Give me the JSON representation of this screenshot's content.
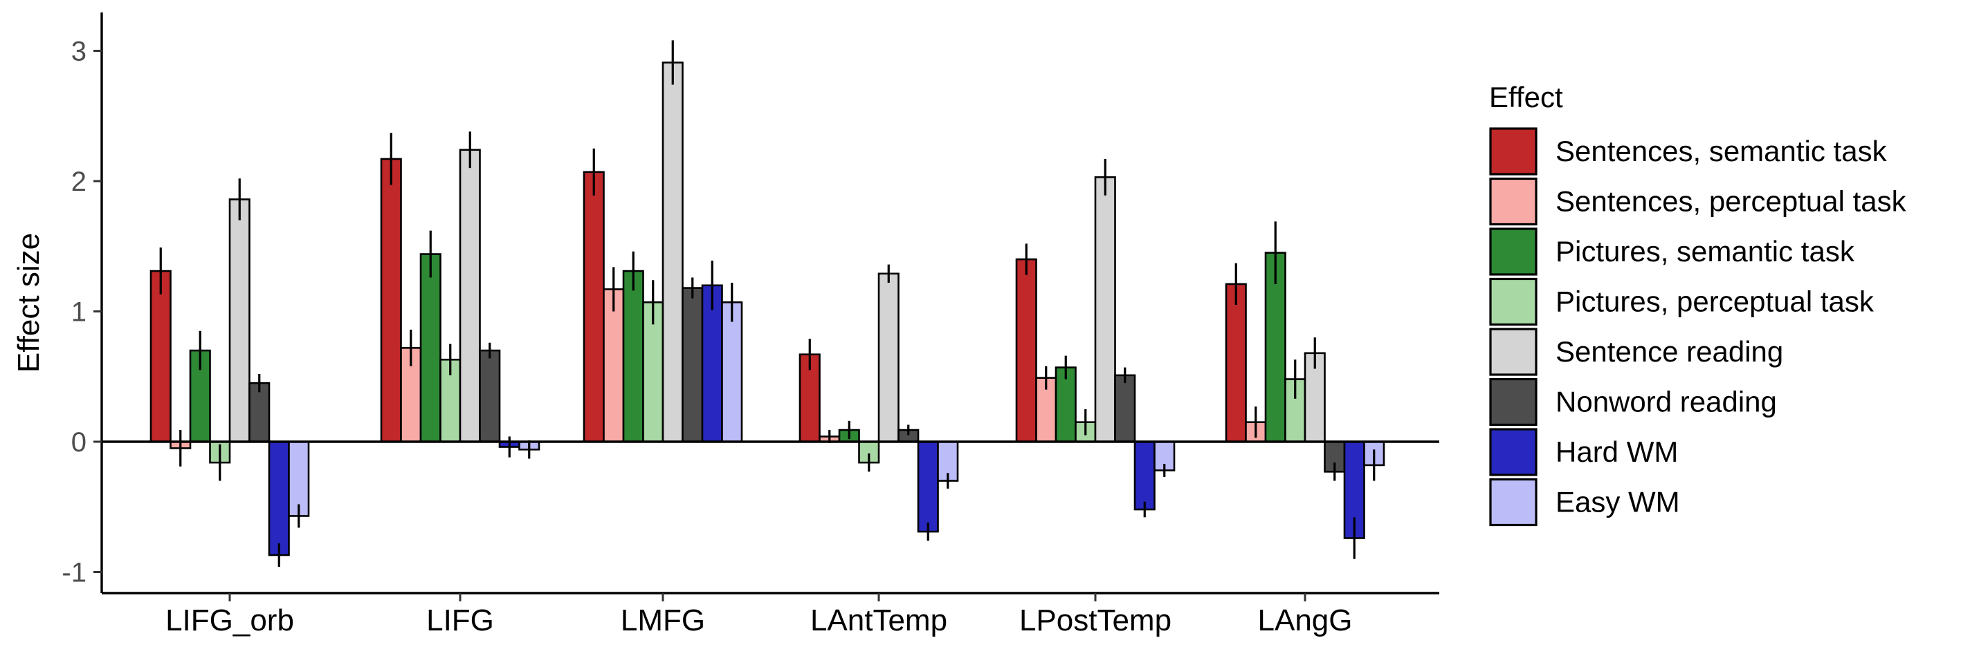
{
  "chart_data": {
    "type": "bar",
    "ylabel": "Effect size",
    "xlabel": "",
    "ylim": [
      -1.15,
      3.3
    ],
    "yticks": [
      -1,
      0,
      1,
      2,
      3
    ],
    "categories": [
      "LIFG_orb",
      "LIFG",
      "LMFG",
      "LAntTemp",
      "LPostTemp",
      "LAngG"
    ],
    "legend": {
      "title": "Effect",
      "position": "right"
    },
    "series": [
      {
        "name": "Sentences, semantic task",
        "color": "#c0282a",
        "values": [
          1.31,
          2.17,
          2.07,
          0.67,
          1.4,
          1.21
        ],
        "errors": [
          0.18,
          0.2,
          0.18,
          0.12,
          0.12,
          0.16
        ]
      },
      {
        "name": "Sentences, perceptual task",
        "color": "#f8aaa6",
        "values": [
          -0.05,
          0.72,
          1.17,
          0.04,
          0.49,
          0.15
        ],
        "errors": [
          0.14,
          0.14,
          0.17,
          0.05,
          0.09,
          0.12
        ]
      },
      {
        "name": "Pictures, semantic task",
        "color": "#2f8a35",
        "values": [
          0.7,
          1.44,
          1.31,
          0.09,
          0.57,
          1.45
        ],
        "errors": [
          0.15,
          0.18,
          0.15,
          0.07,
          0.09,
          0.24
        ]
      },
      {
        "name": "Pictures, perceptual task",
        "color": "#a8d8a4",
        "values": [
          -0.16,
          0.63,
          1.07,
          -0.16,
          0.15,
          0.48
        ],
        "errors": [
          0.14,
          0.12,
          0.17,
          0.07,
          0.1,
          0.15
        ]
      },
      {
        "name": "Sentence reading",
        "color": "#d4d4d4",
        "values": [
          1.86,
          2.24,
          2.91,
          1.29,
          2.03,
          0.68
        ],
        "errors": [
          0.16,
          0.14,
          0.17,
          0.07,
          0.14,
          0.12
        ]
      },
      {
        "name": "Nonword reading",
        "color": "#4d4d4d",
        "values": [
          0.45,
          0.7,
          1.18,
          0.09,
          0.51,
          -0.23
        ],
        "errors": [
          0.07,
          0.06,
          0.08,
          0.04,
          0.06,
          0.07
        ]
      },
      {
        "name": "Hard WM",
        "color": "#2828c0",
        "values": [
          -0.87,
          -0.04,
          1.2,
          -0.69,
          -0.52,
          -0.74
        ],
        "errors": [
          0.09,
          0.08,
          0.19,
          0.07,
          0.06,
          0.16
        ]
      },
      {
        "name": "Easy WM",
        "color": "#bcbcf8",
        "values": [
          -0.57,
          -0.06,
          1.07,
          -0.3,
          -0.22,
          -0.18
        ],
        "errors": [
          0.09,
          0.07,
          0.15,
          0.06,
          0.05,
          0.12
        ]
      }
    ]
  }
}
